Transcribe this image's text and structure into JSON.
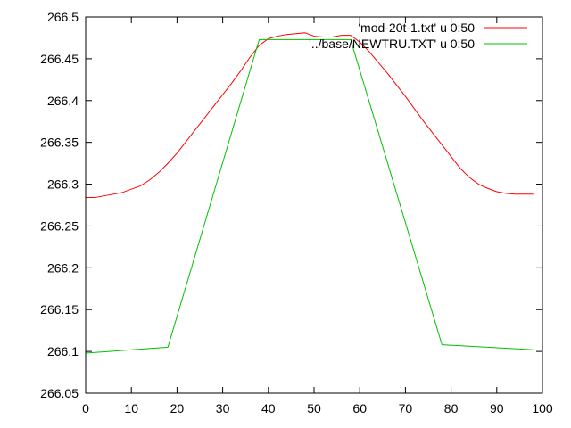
{
  "chart_data": {
    "type": "line",
    "title": "",
    "xlabel": "",
    "ylabel": "",
    "xlim": [
      0,
      100
    ],
    "ylim": [
      266.05,
      266.5
    ],
    "x_ticks": [
      0,
      10,
      20,
      30,
      40,
      50,
      60,
      70,
      80,
      90,
      100
    ],
    "x_tick_labels": [
      "0",
      "10",
      "20",
      "30",
      "40",
      "50",
      "60",
      "70",
      "80",
      "90",
      "100"
    ],
    "y_ticks": [
      266.05,
      266.1,
      266.15,
      266.2,
      266.25,
      266.3,
      266.35,
      266.4,
      266.45,
      266.5
    ],
    "y_tick_labels": [
      "266.05",
      "266.1",
      "266.15",
      "266.2",
      "266.25",
      "266.3",
      "266.35",
      "266.4",
      "266.45",
      "266.5"
    ],
    "grid": false,
    "legend_position": "top-right",
    "series": [
      {
        "name": "'mod-20t-1.txt' u 0:50",
        "color": "#ff0000",
        "x": [
          0,
          2,
          4,
          6,
          8,
          10,
          12,
          14,
          16,
          18,
          20,
          22,
          24,
          26,
          28,
          30,
          32,
          34,
          36,
          38,
          40,
          42,
          44,
          46,
          48,
          50,
          52,
          54,
          56,
          58,
          60,
          62,
          64,
          66,
          68,
          70,
          72,
          74,
          76,
          78,
          80,
          82,
          84,
          86,
          88,
          90,
          92,
          94,
          96,
          98
        ],
        "y": [
          266.284,
          266.284,
          266.286,
          266.288,
          266.29,
          266.294,
          266.298,
          266.305,
          266.314,
          266.325,
          266.337,
          266.351,
          266.365,
          266.379,
          266.393,
          266.407,
          266.421,
          266.436,
          266.452,
          266.466,
          266.474,
          266.477,
          266.479,
          266.48,
          266.481,
          266.477,
          266.476,
          266.476,
          266.478,
          266.478,
          266.47,
          266.459,
          266.446,
          266.433,
          266.419,
          266.405,
          266.39,
          266.375,
          266.361,
          266.347,
          266.333,
          266.319,
          266.308,
          266.3,
          266.295,
          266.291,
          266.289,
          266.288,
          266.288,
          266.288
        ]
      },
      {
        "name": "'../base/NEWTRU.TXT' u 0:50",
        "color": "#00c000",
        "x": [
          0,
          18,
          38,
          58,
          78,
          98
        ],
        "y": [
          266.098,
          266.105,
          266.473,
          266.473,
          266.108,
          266.102
        ]
      }
    ]
  }
}
